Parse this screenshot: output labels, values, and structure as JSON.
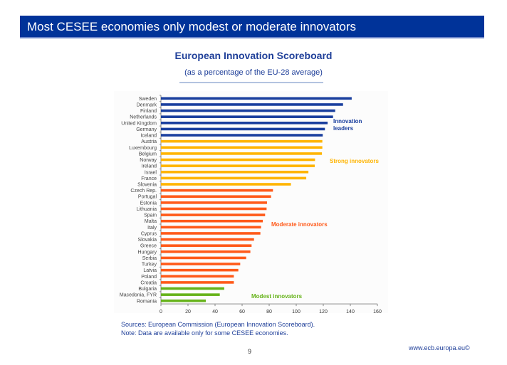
{
  "slide": {
    "title": "Most CESEE economies only modest or moderate innovators",
    "sources": "Sources: European Commission (European Innovation  Scoreboard).",
    "note": "Note: Data are available  only for some CESEE economies.",
    "page": "9",
    "url": "www.ecb.europa.eu©"
  },
  "chart_data": {
    "type": "bar",
    "orientation": "horizontal",
    "title": "European Innovation Scoreboard",
    "subtitle": "(as a percentage of the EU-28 average)",
    "xlim": [
      0,
      160
    ],
    "xticks": [
      "0",
      "20",
      "40",
      "60",
      "80",
      "100",
      "120",
      "140",
      "160"
    ],
    "categories": [
      "Sweden",
      "Denmark",
      "Finland",
      "Netherlands",
      "United Kingdom",
      "Germany",
      "Iceland",
      "Austria",
      "Luxembourg",
      "Belgium",
      "Norway",
      "Ireland",
      "Israel",
      "France",
      "Slovenia",
      "Czech Rep.",
      "Portugal",
      "Estonia",
      "Lithuania",
      "Spain",
      "Malta",
      "Italy",
      "Cyprus",
      "Slovakia",
      "Greece",
      "Hungary",
      "Serbia",
      "Turkey",
      "Latvia",
      "Poland",
      "Croatia",
      "Bulgaria",
      "Macedonia, FYR",
      "Romania"
    ],
    "values": [
      141,
      134.6,
      128.8,
      127.2,
      123.2,
      121.2,
      119.6,
      119.3,
      119.3,
      119,
      113.9,
      113.7,
      109,
      107.4,
      96.1,
      82.8,
      81.4,
      78.4,
      78.1,
      77,
      75.3,
      74,
      73.5,
      68.8,
      67,
      66.1,
      63,
      58.6,
      57.2,
      53.9,
      53.9,
      46.8,
      43.5,
      33.2
    ],
    "groups": [
      {
        "name": "Innovation leaders",
        "label_lines": [
          "Innovation",
          "leaders"
        ],
        "start": 0,
        "end": 6,
        "color": "#1a3f9e"
      },
      {
        "name": "Strong innovators",
        "label_lines": [
          "Strong innovators"
        ],
        "start": 7,
        "end": 14,
        "color": "#ffb400"
      },
      {
        "name": "Moderate innovators",
        "label_lines": [
          "Moderate innovators"
        ],
        "start": 15,
        "end": 30,
        "color": "#ff5a1a"
      },
      {
        "name": "Modest innovators",
        "label_lines": [
          "Modest innovators"
        ],
        "start": 31,
        "end": 33,
        "color": "#66b31a"
      }
    ]
  }
}
